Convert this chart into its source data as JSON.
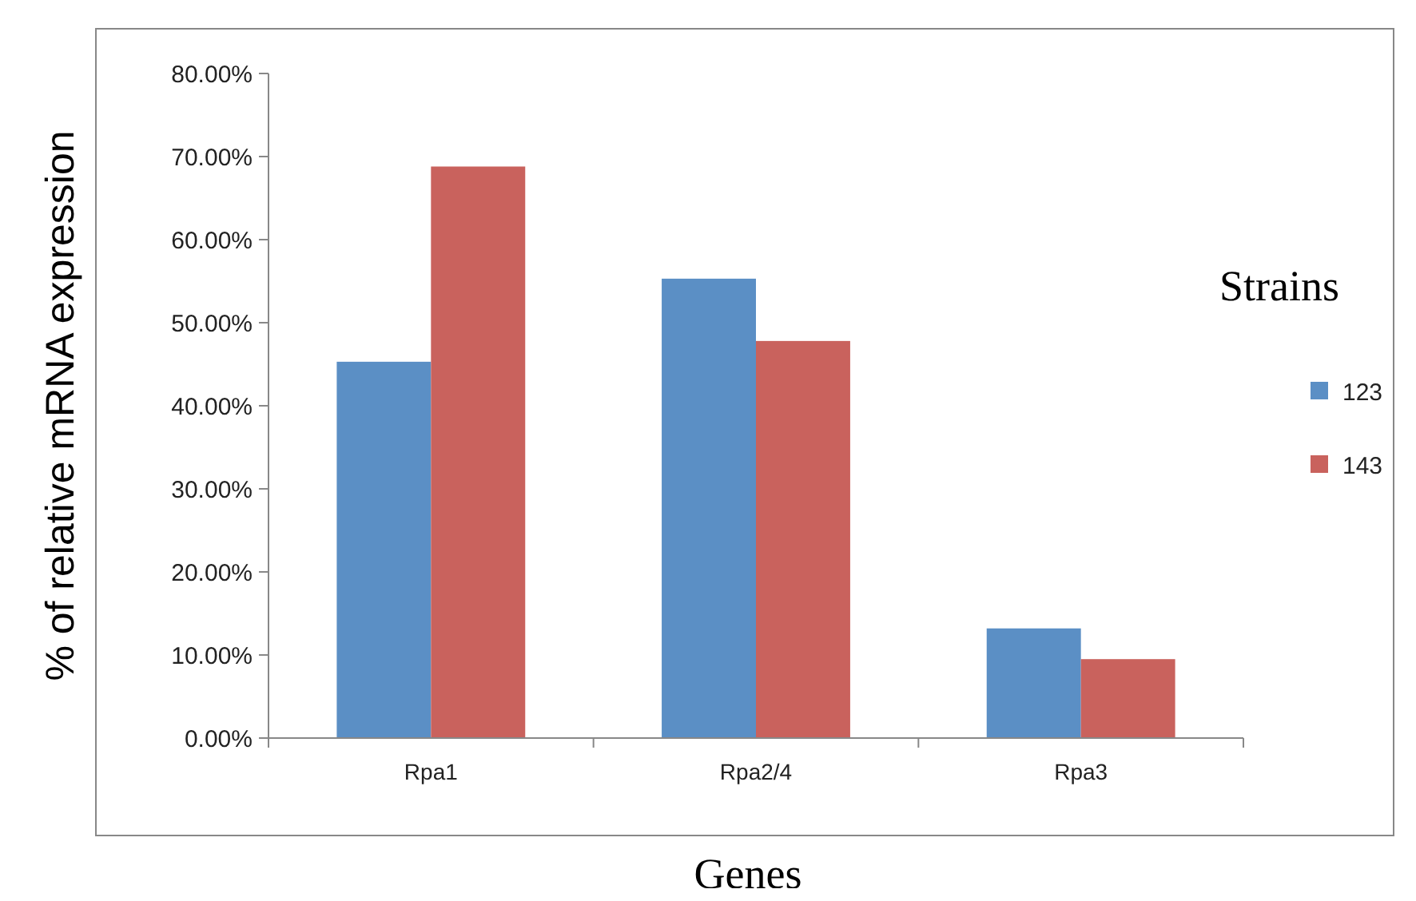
{
  "chart_data": {
    "type": "bar",
    "xlabel": "Genes",
    "ylabel": "% of relative mRNA expression",
    "legend_title": "Strains",
    "legend": "right",
    "categories": [
      "Rpa1",
      "Rpa2/4",
      "Rpa3"
    ],
    "series": [
      {
        "name": "123",
        "color": "#5b8fc5",
        "values": [
          45.3,
          55.3,
          13.2
        ]
      },
      {
        "name": "143",
        "color": "#c9625d",
        "values": [
          68.8,
          47.8,
          9.5
        ]
      }
    ],
    "ylim": [
      0,
      80
    ],
    "yticks": [
      {
        "value": 0,
        "label": "0.00%"
      },
      {
        "value": 10,
        "label": "10.00%"
      },
      {
        "value": 20,
        "label": "20.00%"
      },
      {
        "value": 30,
        "label": "30.00%"
      },
      {
        "value": 40,
        "label": "40.00%"
      },
      {
        "value": 50,
        "label": "50.00%"
      },
      {
        "value": 60,
        "label": "60.00%"
      },
      {
        "value": 70,
        "label": "70.00%"
      },
      {
        "value": 80,
        "label": "80.00%"
      }
    ],
    "grid": false
  }
}
